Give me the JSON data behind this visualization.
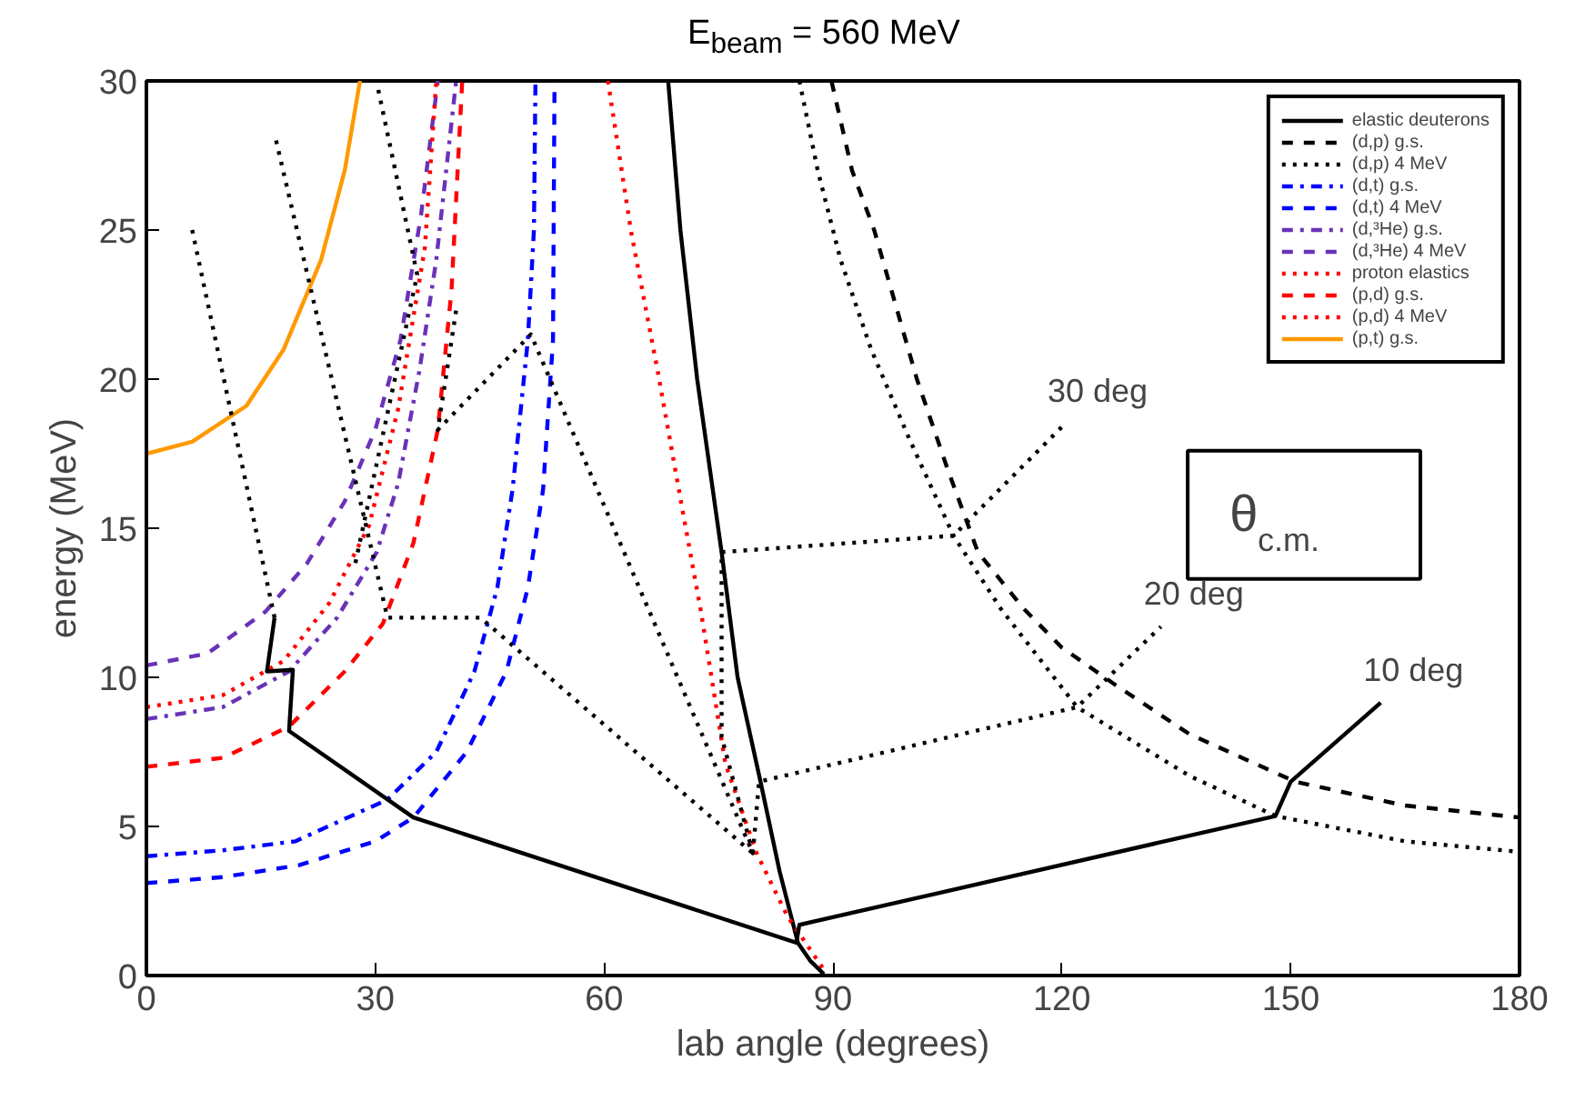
{
  "chart_data": {
    "type": "line",
    "title": "E$_{beam}$ = 560 MeV",
    "xlabel": "lab angle (degrees)",
    "ylabel": "energy (MeV)",
    "xlim": [
      0,
      180
    ],
    "xticks": [
      0,
      30,
      60,
      90,
      120,
      150,
      180
    ],
    "ylim": [
      0,
      30
    ],
    "yticks": [
      0,
      5,
      10,
      15,
      20,
      25,
      30
    ],
    "grid": false,
    "legend": "top right",
    "series": [
      {
        "name": "elastic deuterons",
        "color": "#000000",
        "line_style": "solid",
        "x": [
          68.4,
          70,
          72.2,
          75.4,
          77.5,
          80.5,
          83,
          85.4,
          87,
          88.8
        ],
        "values": [
          30,
          25,
          20,
          14.2,
          10,
          6.5,
          3.5,
          1.1,
          0.5,
          0.05
        ]
      },
      {
        "name": "(d,p) g.s.",
        "color": "#000000",
        "line_style": "dashed",
        "x": [
          89.8,
          92.5,
          95.4,
          101,
          105,
          109,
          115,
          120,
          127,
          136.7,
          150.6,
          165,
          180
        ],
        "values": [
          30,
          27,
          25,
          20,
          17,
          14.2,
          12.3,
          11,
          9.75,
          8.1,
          6.5,
          5.7,
          5.3
        ]
      },
      {
        "name": "(d,p) 4 MeV",
        "color": "#000000",
        "line_style": "dotted",
        "x": [
          85.6,
          88,
          91,
          95,
          100,
          105.8,
          112,
          122,
          136.7,
          148,
          165,
          180
        ],
        "values": [
          30,
          27,
          24,
          21,
          18,
          14.75,
          12.3,
          9.0,
          6.7,
          5.35,
          4.5,
          4.15
        ]
      },
      {
        "name": "(d,t) g.s.",
        "color": "#0000ff",
        "line_style": "dashdot",
        "x": [
          0,
          10,
          19.5,
          31.6,
          38,
          43,
          46,
          48,
          50,
          50.8,
          51
        ],
        "values": [
          4.0,
          4.2,
          4.5,
          5.9,
          7.5,
          10.2,
          13,
          16.3,
          21.3,
          25,
          30
        ]
      },
      {
        "name": "(d,t) 4 MeV",
        "color": "#0000ff",
        "line_style": "dashed",
        "x": [
          0,
          10,
          20,
          30,
          35,
          42,
          47.2,
          50,
          52,
          53.3,
          53.5
        ],
        "values": [
          3.1,
          3.3,
          3.7,
          4.5,
          5.3,
          7.5,
          10.2,
          13,
          16.3,
          21.3,
          30
        ]
      },
      {
        "name": "(d,³He) g.s.",
        "color": "#6a32b8",
        "line_style": "dashdot",
        "x": [
          0,
          10,
          18.7,
          25,
          30.2,
          33,
          35.8,
          38,
          40.6
        ],
        "values": [
          8.6,
          9.0,
          10.2,
          12,
          14.2,
          16.5,
          20.3,
          24,
          30
        ]
      },
      {
        "name": "(d,³He) 4 MeV",
        "color": "#6a32b8",
        "line_style": "dashed",
        "x": [
          0,
          8,
          15.6,
          21,
          26,
          30,
          33.3,
          36,
          38.2
        ],
        "values": [
          10.4,
          10.8,
          12.2,
          13.8,
          15.9,
          18.3,
          21.3,
          25.5,
          30
        ]
      },
      {
        "name": "proton elastics",
        "color": "#ff0000",
        "line_style": "dotted",
        "x": [
          60.5,
          63.5,
          67,
          70,
          72.7,
          75.9,
          80,
          84,
          88.8
        ],
        "values": [
          30,
          25,
          20.3,
          16,
          12.2,
          7.1,
          4.1,
          2,
          0.2
        ]
      },
      {
        "name": "(p,d) g.s.",
        "color": "#ff0000",
        "line_style": "dashed",
        "x": [
          0,
          10,
          18.7,
          26,
          31,
          35,
          38.2,
          40,
          41.4
        ],
        "values": [
          7.0,
          7.3,
          8.35,
          10.2,
          11.8,
          14.5,
          18.3,
          23,
          30
        ]
      },
      {
        "name": "(p,d) 4 MeV",
        "color": "#ff0000",
        "line_style": "dotted",
        "x": [
          0,
          10,
          18,
          24,
          29.2,
          33,
          36.5,
          38
        ],
        "values": [
          9.0,
          9.4,
          10.55,
          12.5,
          15.1,
          19,
          24.4,
          30
        ]
      },
      {
        "name": "(p,t) g.s.",
        "color": "#ff9900",
        "line_style": "solid",
        "x": [
          0,
          6,
          13.1,
          18,
          22.9,
          26,
          28
        ],
        "values": [
          17.5,
          17.9,
          19.1,
          21,
          24,
          27,
          30
        ]
      },
      {
        "color": "#000000",
        "line_style": "solid",
        "x": [
          16.8,
          15.8,
          19.2,
          18.7,
          35,
          85.2,
          85.6,
          148,
          150,
          161.8
        ],
        "values": [
          12.0,
          10.2,
          10.25,
          8.2,
          5.3,
          1.1,
          1.7,
          5.35,
          6.5,
          9.15
        ]
      },
      {
        "color": "#000000",
        "line_style": "dotted",
        "x": [
          6,
          16.8
        ],
        "values": [
          25,
          12
        ]
      },
      {
        "color": "#000000",
        "line_style": "dotted",
        "x": [
          17,
          31.6,
          43.8,
          79.5
        ],
        "values": [
          28,
          12,
          12,
          4.1
        ]
      },
      {
        "color": "#000000",
        "line_style": "dotted",
        "x": [
          30.4,
          35.5,
          27.2
        ],
        "values": [
          29.7,
          23.5,
          13.6
        ]
      },
      {
        "color": "#000000",
        "line_style": "dotted",
        "x": [
          40.6,
          38.2,
          50.4,
          79.5,
          75.4,
          75.4,
          105.8,
          120.4
        ],
        "values": [
          22.3,
          18.3,
          21.5,
          4.1,
          8,
          14.2,
          14.75,
          18.5
        ]
      },
      {
        "color": "#000000",
        "line_style": "dotted",
        "x": [
          79.5,
          80.3,
          122,
          133
        ],
        "values": [
          4.1,
          6.5,
          9.0,
          11.7
        ]
      }
    ],
    "annotations": [
      {
        "text": "30 deg",
        "x": 120.4,
        "y": 18.5
      },
      {
        "text": "20 deg",
        "x": 133,
        "y": 11.7
      },
      {
        "text": "10 deg",
        "x": 161.8,
        "y": 9.15
      },
      "θ$_{c.m.}$"
    ]
  }
}
